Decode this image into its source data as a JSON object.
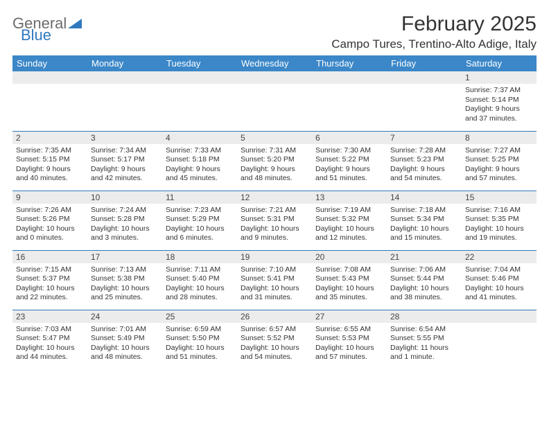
{
  "logo": {
    "text1": "General",
    "text2": "Blue"
  },
  "title": "February 2025",
  "location": "Campo Tures, Trentino-Alto Adige, Italy",
  "colors": {
    "header_bg": "#3b87c8",
    "header_text": "#ffffff",
    "border": "#2f78bd",
    "daynum_bg": "#ececec",
    "logo_blue": "#2f78bd"
  },
  "weekdays": [
    "Sunday",
    "Monday",
    "Tuesday",
    "Wednesday",
    "Thursday",
    "Friday",
    "Saturday"
  ],
  "weeks": [
    [
      null,
      null,
      null,
      null,
      null,
      null,
      {
        "n": "1",
        "sr": "7:37 AM",
        "ss": "5:14 PM",
        "dl": "9 hours and 37 minutes."
      }
    ],
    [
      {
        "n": "2",
        "sr": "7:35 AM",
        "ss": "5:15 PM",
        "dl": "9 hours and 40 minutes."
      },
      {
        "n": "3",
        "sr": "7:34 AM",
        "ss": "5:17 PM",
        "dl": "9 hours and 42 minutes."
      },
      {
        "n": "4",
        "sr": "7:33 AM",
        "ss": "5:18 PM",
        "dl": "9 hours and 45 minutes."
      },
      {
        "n": "5",
        "sr": "7:31 AM",
        "ss": "5:20 PM",
        "dl": "9 hours and 48 minutes."
      },
      {
        "n": "6",
        "sr": "7:30 AM",
        "ss": "5:22 PM",
        "dl": "9 hours and 51 minutes."
      },
      {
        "n": "7",
        "sr": "7:28 AM",
        "ss": "5:23 PM",
        "dl": "9 hours and 54 minutes."
      },
      {
        "n": "8",
        "sr": "7:27 AM",
        "ss": "5:25 PM",
        "dl": "9 hours and 57 minutes."
      }
    ],
    [
      {
        "n": "9",
        "sr": "7:26 AM",
        "ss": "5:26 PM",
        "dl": "10 hours and 0 minutes."
      },
      {
        "n": "10",
        "sr": "7:24 AM",
        "ss": "5:28 PM",
        "dl": "10 hours and 3 minutes."
      },
      {
        "n": "11",
        "sr": "7:23 AM",
        "ss": "5:29 PM",
        "dl": "10 hours and 6 minutes."
      },
      {
        "n": "12",
        "sr": "7:21 AM",
        "ss": "5:31 PM",
        "dl": "10 hours and 9 minutes."
      },
      {
        "n": "13",
        "sr": "7:19 AM",
        "ss": "5:32 PM",
        "dl": "10 hours and 12 minutes."
      },
      {
        "n": "14",
        "sr": "7:18 AM",
        "ss": "5:34 PM",
        "dl": "10 hours and 15 minutes."
      },
      {
        "n": "15",
        "sr": "7:16 AM",
        "ss": "5:35 PM",
        "dl": "10 hours and 19 minutes."
      }
    ],
    [
      {
        "n": "16",
        "sr": "7:15 AM",
        "ss": "5:37 PM",
        "dl": "10 hours and 22 minutes."
      },
      {
        "n": "17",
        "sr": "7:13 AM",
        "ss": "5:38 PM",
        "dl": "10 hours and 25 minutes."
      },
      {
        "n": "18",
        "sr": "7:11 AM",
        "ss": "5:40 PM",
        "dl": "10 hours and 28 minutes."
      },
      {
        "n": "19",
        "sr": "7:10 AM",
        "ss": "5:41 PM",
        "dl": "10 hours and 31 minutes."
      },
      {
        "n": "20",
        "sr": "7:08 AM",
        "ss": "5:43 PM",
        "dl": "10 hours and 35 minutes."
      },
      {
        "n": "21",
        "sr": "7:06 AM",
        "ss": "5:44 PM",
        "dl": "10 hours and 38 minutes."
      },
      {
        "n": "22",
        "sr": "7:04 AM",
        "ss": "5:46 PM",
        "dl": "10 hours and 41 minutes."
      }
    ],
    [
      {
        "n": "23",
        "sr": "7:03 AM",
        "ss": "5:47 PM",
        "dl": "10 hours and 44 minutes."
      },
      {
        "n": "24",
        "sr": "7:01 AM",
        "ss": "5:49 PM",
        "dl": "10 hours and 48 minutes."
      },
      {
        "n": "25",
        "sr": "6:59 AM",
        "ss": "5:50 PM",
        "dl": "10 hours and 51 minutes."
      },
      {
        "n": "26",
        "sr": "6:57 AM",
        "ss": "5:52 PM",
        "dl": "10 hours and 54 minutes."
      },
      {
        "n": "27",
        "sr": "6:55 AM",
        "ss": "5:53 PM",
        "dl": "10 hours and 57 minutes."
      },
      {
        "n": "28",
        "sr": "6:54 AM",
        "ss": "5:55 PM",
        "dl": "11 hours and 1 minute."
      },
      null
    ]
  ],
  "labels": {
    "sunrise": "Sunrise:",
    "sunset": "Sunset:",
    "daylight": "Daylight:"
  }
}
